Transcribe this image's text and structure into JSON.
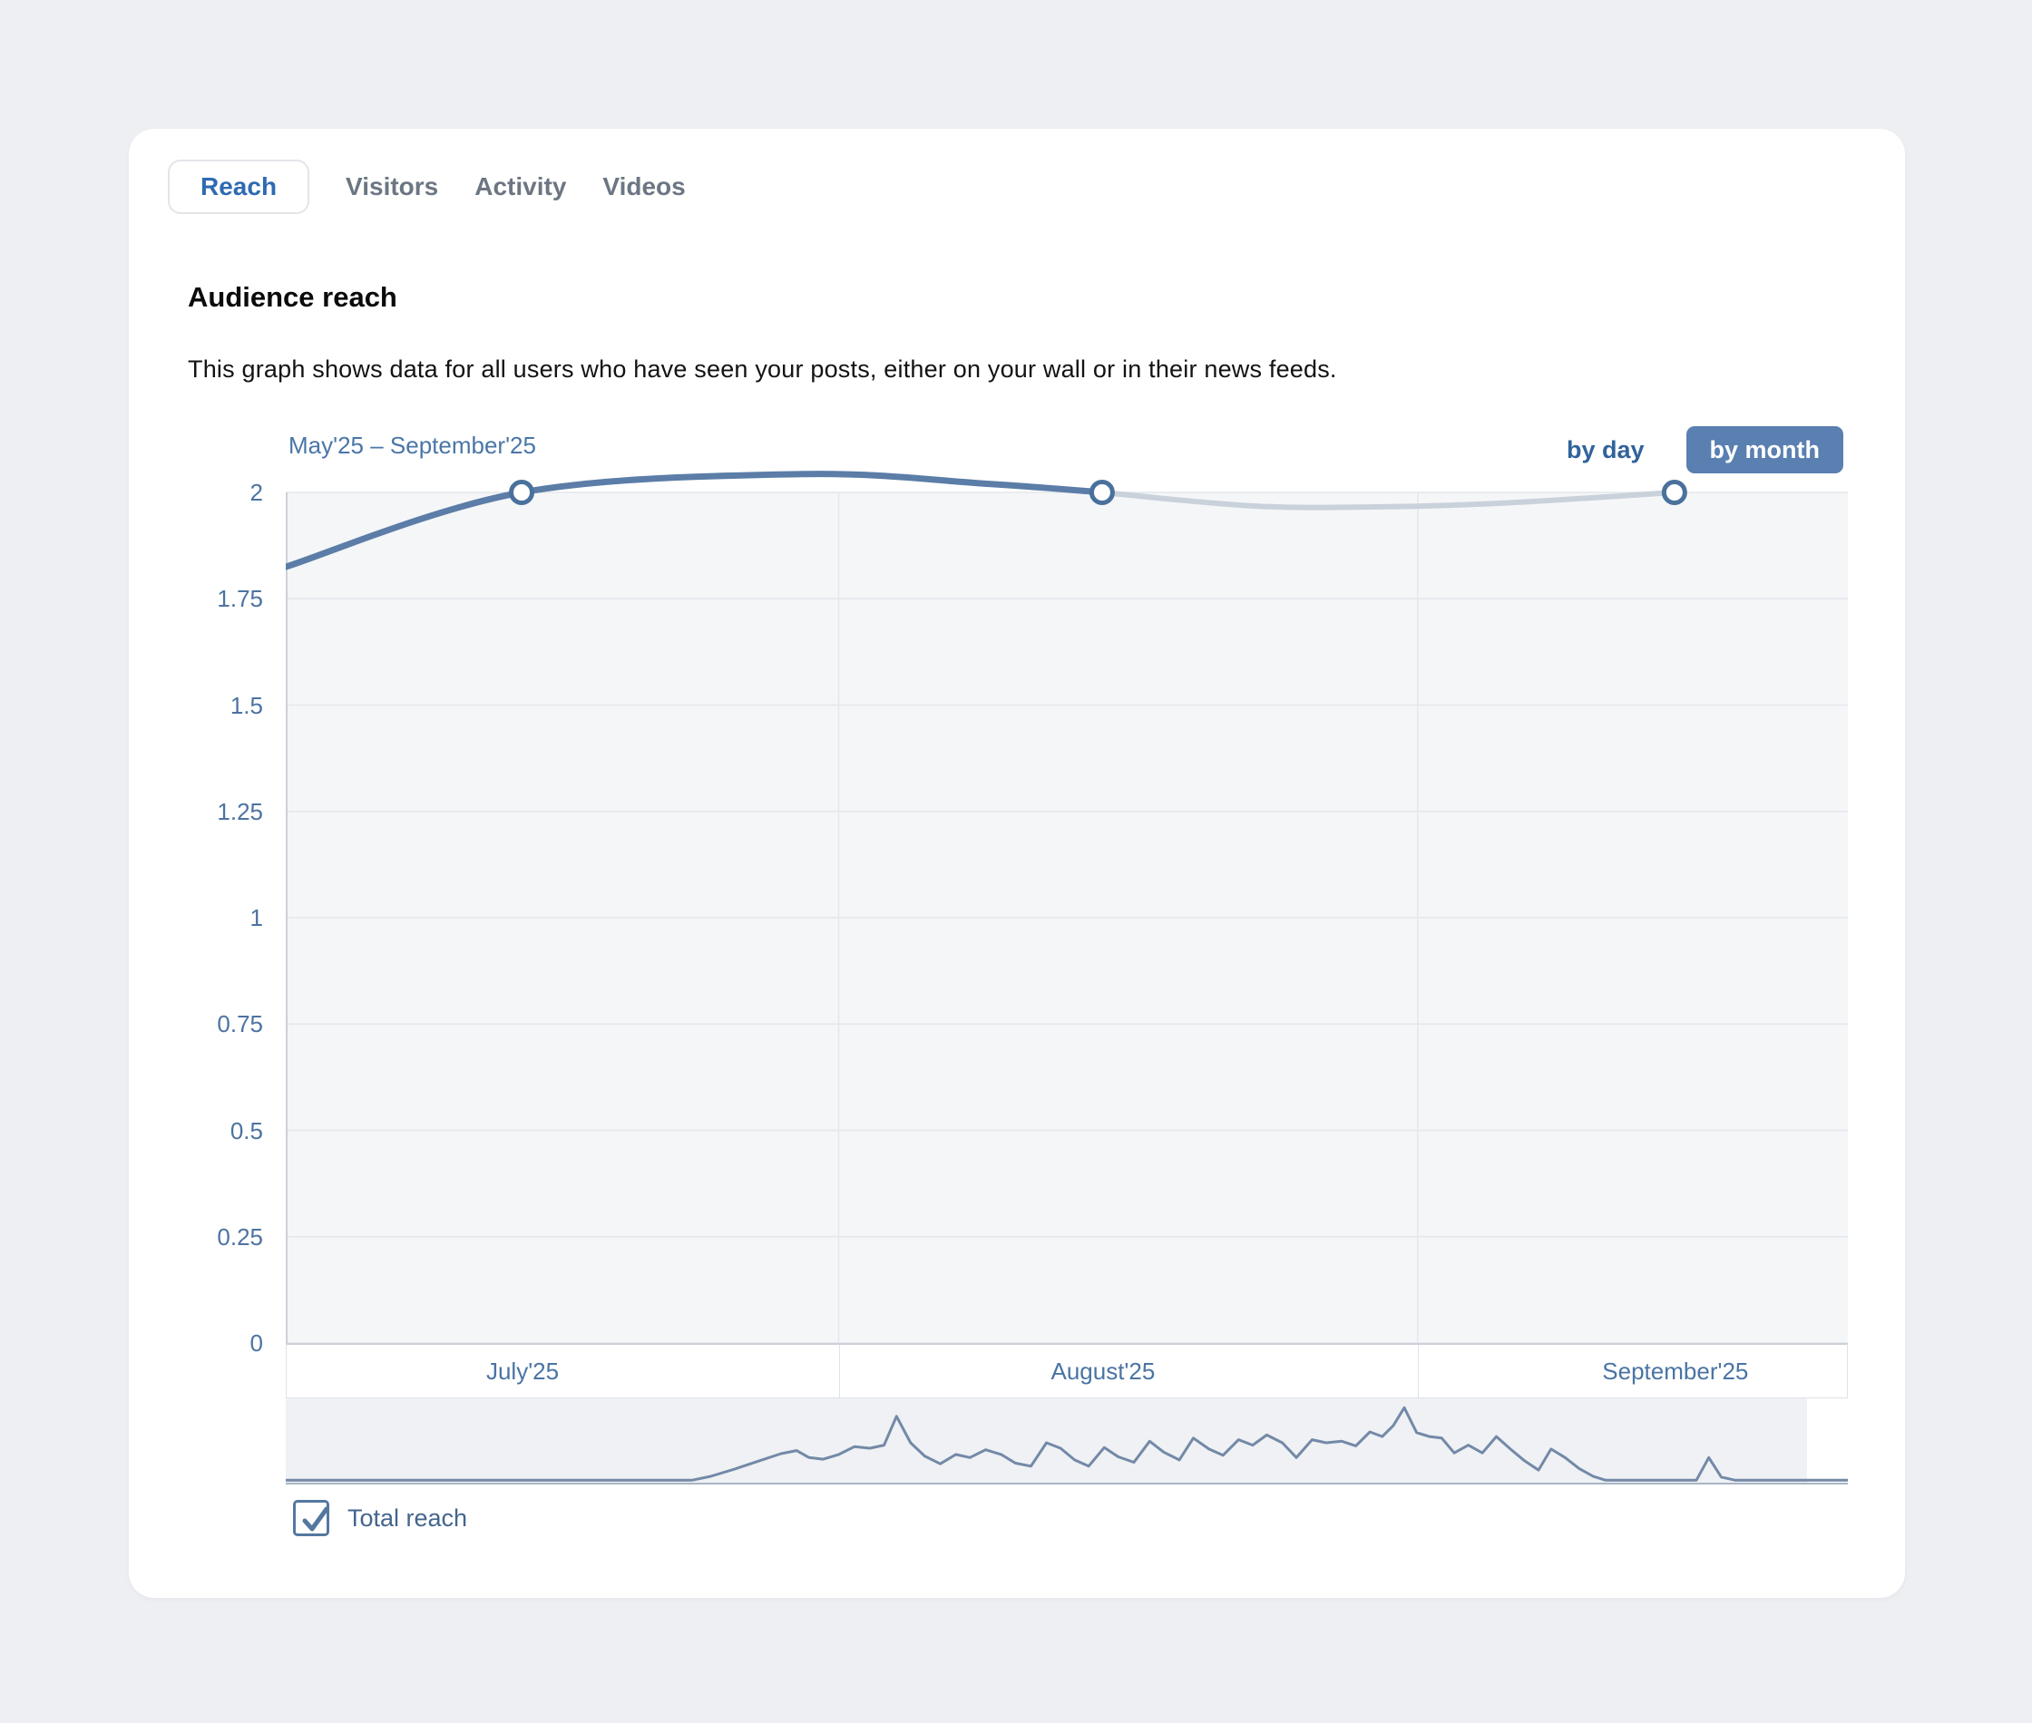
{
  "tabs": [
    {
      "label": "Reach",
      "active": true
    },
    {
      "label": "Visitors",
      "active": false
    },
    {
      "label": "Activity",
      "active": false
    },
    {
      "label": "Videos",
      "active": false
    }
  ],
  "section": {
    "title": "Audience reach",
    "description": "This graph shows data for all users who have seen your posts, either on your wall or in their news feeds."
  },
  "controls": {
    "range_label": "May'25 – September'25",
    "granularity_options": [
      "by day",
      "by month"
    ],
    "granularity_selected": "by month"
  },
  "legend": {
    "checkbox_label": "Total reach",
    "checked": true
  },
  "colors": {
    "page_bg": "#edeff2",
    "card_bg": "#ffffff",
    "accent_blue": "#2e6ab2",
    "tab_inactive": "#6c7683",
    "link_blue": "#4a76a7",
    "button_bg": "#5a7fb1",
    "series_solid": "#5b7da7",
    "series_faded": "#c9d1db",
    "marker_ring": "#4a719c",
    "grid": "#e4e7eb",
    "axis_line": "#ccd1d9",
    "plot_bg": "#f5f6f8",
    "nav_bg": "#eff1f4",
    "nav_line": "#7389a7",
    "nav_border": "#aab5c4",
    "checkbox_blue": "#54779f",
    "label_blue": "#44658d"
  },
  "chart_data": {
    "type": "line",
    "title": "Audience reach",
    "period_label": "May'25 – September'25",
    "granularity": "by month",
    "x_categories": [
      "July'25",
      "August'25",
      "September'25"
    ],
    "x_category_fx": [
      0.151,
      0.5226,
      0.889
    ],
    "month_boundaries_fx": [
      0.354,
      0.7247
    ],
    "y_tick_labels": [
      "2",
      "1.75",
      "1.5",
      "1.25",
      "1",
      "0.75",
      "0.5",
      "0.25",
      "0"
    ],
    "y_tick_values": [
      2,
      1.75,
      1.5,
      1.25,
      1,
      0.75,
      0.5,
      0.25,
      0
    ],
    "ylim": [
      0,
      2
    ],
    "grid": true,
    "legend_position": "bottom-left",
    "series": [
      {
        "name": "Total reach",
        "monthly_values": {
          "July'25": 2,
          "August'25": 2,
          "September'25": 2
        },
        "entry_value": 1.83,
        "peak_between_july_august": 2.04,
        "dip_between_august_september": 1.97,
        "solid_anchors_fx_value": [
          [
            0,
            1.825
          ],
          [
            0.151,
            2.0
          ],
          [
            0.331,
            2.043
          ],
          [
            0.45,
            2.02
          ],
          [
            0.5226,
            2.0
          ]
        ],
        "faded_anchors_fx_value": [
          [
            0.5226,
            2.0
          ],
          [
            0.62,
            1.968
          ],
          [
            0.7,
            1.966
          ],
          [
            0.78,
            1.975
          ],
          [
            0.889,
            2.0
          ]
        ],
        "marker_fx_value": [
          [
            0.151,
            2.0
          ],
          [
            0.5226,
            2.0
          ],
          [
            0.889,
            2.0
          ]
        ],
        "style_note": "segment after August'25 marker rendered faded (incomplete month)"
      }
    ],
    "navigator_profile_fx_h": [
      [
        0,
        0.02
      ],
      [
        0.26,
        0.02
      ],
      [
        0.272,
        0.07
      ],
      [
        0.287,
        0.16
      ],
      [
        0.302,
        0.26
      ],
      [
        0.317,
        0.36
      ],
      [
        0.327,
        0.4
      ],
      [
        0.335,
        0.31
      ],
      [
        0.344,
        0.29
      ],
      [
        0.354,
        0.35
      ],
      [
        0.364,
        0.45
      ],
      [
        0.374,
        0.43
      ],
      [
        0.383,
        0.47
      ],
      [
        0.391,
        0.84
      ],
      [
        0.4,
        0.5
      ],
      [
        0.409,
        0.33
      ],
      [
        0.419,
        0.23
      ],
      [
        0.429,
        0.35
      ],
      [
        0.438,
        0.31
      ],
      [
        0.448,
        0.41
      ],
      [
        0.458,
        0.35
      ],
      [
        0.467,
        0.24
      ],
      [
        0.477,
        0.2
      ],
      [
        0.487,
        0.5
      ],
      [
        0.496,
        0.43
      ],
      [
        0.505,
        0.28
      ],
      [
        0.514,
        0.2
      ],
      [
        0.524,
        0.44
      ],
      [
        0.533,
        0.32
      ],
      [
        0.543,
        0.25
      ],
      [
        0.553,
        0.52
      ],
      [
        0.562,
        0.38
      ],
      [
        0.572,
        0.28
      ],
      [
        0.581,
        0.56
      ],
      [
        0.591,
        0.42
      ],
      [
        0.6,
        0.34
      ],
      [
        0.61,
        0.54
      ],
      [
        0.619,
        0.47
      ],
      [
        0.628,
        0.6
      ],
      [
        0.638,
        0.5
      ],
      [
        0.647,
        0.31
      ],
      [
        0.657,
        0.54
      ],
      [
        0.666,
        0.5
      ],
      [
        0.676,
        0.52
      ],
      [
        0.685,
        0.46
      ],
      [
        0.694,
        0.64
      ],
      [
        0.702,
        0.58
      ],
      [
        0.709,
        0.72
      ],
      [
        0.716,
        0.95
      ],
      [
        0.724,
        0.63
      ],
      [
        0.732,
        0.58
      ],
      [
        0.74,
        0.56
      ],
      [
        0.748,
        0.37
      ],
      [
        0.757,
        0.47
      ],
      [
        0.766,
        0.37
      ],
      [
        0.775,
        0.58
      ],
      [
        0.784,
        0.42
      ],
      [
        0.793,
        0.27
      ],
      [
        0.802,
        0.15
      ],
      [
        0.81,
        0.42
      ],
      [
        0.819,
        0.31
      ],
      [
        0.828,
        0.17
      ],
      [
        0.837,
        0.07
      ],
      [
        0.845,
        0.02
      ],
      [
        0.903,
        0.02
      ],
      [
        0.911,
        0.31
      ],
      [
        0.919,
        0.06
      ],
      [
        0.928,
        0.02
      ],
      [
        1,
        0.02
      ]
    ]
  }
}
